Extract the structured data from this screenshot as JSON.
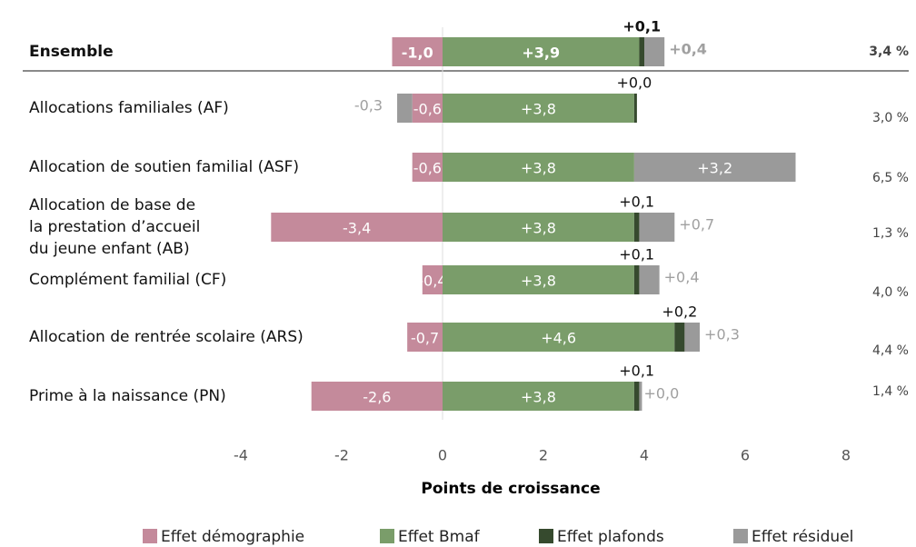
{
  "chart_data": {
    "type": "bar",
    "orientation": "horizontal",
    "stacked": true,
    "categories": [
      "Ensemble",
      "Allocations familiales (AF)",
      "Allocation de soutien familial (ASF)",
      "Allocation de base de\nla prestation d’accueil\ndu jeune enfant (AB)",
      "Complément familial (CF)",
      "Allocation de rentrée scolaire (ARS)",
      "Prime à la naissance (PN)"
    ],
    "series": [
      {
        "name": "Effet démographie",
        "color": "#c48a9b",
        "values": [
          -1.0,
          -0.6,
          -0.6,
          -3.4,
          -0.4,
          -0.7,
          -2.6
        ],
        "value_labels": [
          "-1,0",
          "-0,6",
          "-0,6",
          "-3,4",
          "-0,4",
          "-0,7",
          "-2,6"
        ]
      },
      {
        "name": "Effet Bmaf",
        "color": "#7a9d6a",
        "values": [
          3.9,
          3.8,
          3.8,
          3.8,
          3.8,
          4.6,
          3.8
        ],
        "value_labels": [
          "+3,9",
          "+3,8",
          "+3,8",
          "+3,8",
          "+3,8",
          "+4,6",
          "+3,8"
        ]
      },
      {
        "name": "Effet plafonds",
        "color": "#364a2e",
        "values": [
          0.1,
          0.0,
          null,
          0.1,
          0.1,
          0.2,
          0.1
        ],
        "value_labels": [
          "+0,1",
          "+0,0",
          null,
          "+0,1",
          "+0,1",
          "+0,2",
          "+0,1"
        ]
      },
      {
        "name": "Effet résiduel",
        "color": "#9a9a9a",
        "values": [
          0.4,
          -0.3,
          3.2,
          0.7,
          0.4,
          0.3,
          0.0
        ],
        "value_labels": [
          "+0,4",
          "-0,3",
          "+3,2",
          "+0,7",
          "+0,4",
          "+0,3",
          "+0,0"
        ]
      }
    ],
    "total_labels": [
      "3,4 %",
      "3,0 %",
      "6,5 %",
      "1,3 %",
      "4,0 %",
      "4,4 %",
      "1,4 %"
    ],
    "xlabel": "Points de croissance",
    "xlim": [
      -4,
      8
    ],
    "xticks": [
      -4,
      -2,
      0,
      2,
      4,
      6,
      8
    ]
  }
}
